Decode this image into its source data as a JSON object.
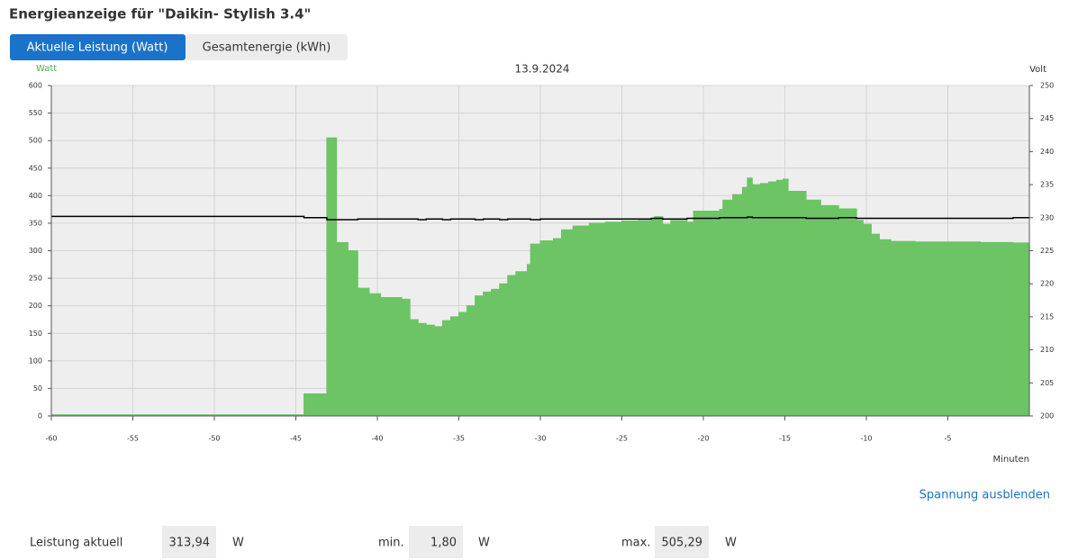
{
  "header": {
    "title": "Energieanzeige für \"Daikin- Stylish 3.4\""
  },
  "tabs": [
    "Aktuelle Leistung (Watt)",
    "Gesamtenergie (kWh)"
  ],
  "chart_data": {
    "type": "area",
    "title": "13.9.2024",
    "y_label": "Watt",
    "y2_label": "Volt",
    "x_label": "Minuten",
    "x": [
      -60,
      -44.5,
      -43.1,
      -42.5,
      -41.8,
      -41.2,
      -40.5,
      -39.8,
      -38.5,
      -38,
      -37.5,
      -37,
      -36.5,
      -36,
      -35.5,
      -35,
      -34.5,
      -34,
      -33.5,
      -33,
      -32.5,
      -32,
      -31.5,
      -30.8,
      -30.6,
      -30,
      -29.2,
      -28.7,
      -28,
      -27,
      -26,
      -25,
      -24,
      -23.2,
      -23,
      -22.5,
      -22,
      -21,
      -20.6,
      -19,
      -18.8,
      -18.2,
      -17.6,
      -17.3,
      -17,
      -16.5,
      -16,
      -15.5,
      -15.1,
      -14.8,
      -13.7,
      -12.8,
      -11.7,
      -10.6,
      -10.2,
      -9.7,
      -9.2,
      -8.5,
      -7,
      -5,
      -3,
      -1,
      0
    ],
    "series": [
      {
        "color": "#6cc465",
        "values": [
          2,
          40,
          505,
          315,
          300,
          232,
          222,
          215,
          212,
          175,
          168,
          165,
          162,
          173,
          180,
          188,
          200,
          218,
          225,
          230,
          240,
          255,
          262,
          275,
          312,
          318,
          322,
          338,
          345,
          350,
          352,
          354,
          355,
          358,
          362,
          348,
          355,
          352,
          372,
          375,
          392,
          402,
          415,
          432,
          420,
          422,
          425,
          428,
          430,
          408,
          392,
          382,
          376,
          355,
          348,
          330,
          320,
          317,
          316,
          316,
          315,
          314,
          314
        ]
      },
      {
        "color": "#000000",
        "axis": "y2",
        "values": [
          230.2,
          230.0,
          229.7,
          229.7,
          229.7,
          229.8,
          229.8,
          229.8,
          229.8,
          229.8,
          229.7,
          229.8,
          229.8,
          229.7,
          229.8,
          229.8,
          229.8,
          229.7,
          229.8,
          229.8,
          229.7,
          229.8,
          229.8,
          229.8,
          229.7,
          229.8,
          229.8,
          229.8,
          229.8,
          229.8,
          229.8,
          229.8,
          229.8,
          229.9,
          229.9,
          229.8,
          229.8,
          229.9,
          229.9,
          230.0,
          230.0,
          230.0,
          230.0,
          230.1,
          230.0,
          230.0,
          230.0,
          230.0,
          230.0,
          230.0,
          229.9,
          229.9,
          230.0,
          229.9,
          229.9,
          229.9,
          229.9,
          229.9,
          229.9,
          229.9,
          229.9,
          230.0,
          230.0
        ]
      }
    ],
    "xlim": [
      -60,
      0
    ],
    "xticks": [
      -60,
      -55,
      -50,
      -45,
      -40,
      -35,
      -30,
      -25,
      -20,
      -15,
      -10,
      -5
    ],
    "ylim": [
      0,
      600
    ],
    "yticks": [
      0,
      50,
      100,
      150,
      200,
      250,
      300,
      350,
      400,
      450,
      500,
      550,
      600
    ],
    "y2lim": [
      200,
      250
    ],
    "y2ticks": [
      200,
      205,
      210,
      215,
      220,
      225,
      230,
      235,
      240,
      245,
      250
    ],
    "grid": true,
    "step": true
  },
  "link": "Spannung ausblenden",
  "stats": [
    {
      "label": "Leistung aktuell",
      "value": "313,94",
      "unit": "W"
    },
    {
      "label": "min.",
      "value": "1,80",
      "unit": "W"
    },
    {
      "label": "max.",
      "value": "505,29",
      "unit": "W"
    }
  ]
}
